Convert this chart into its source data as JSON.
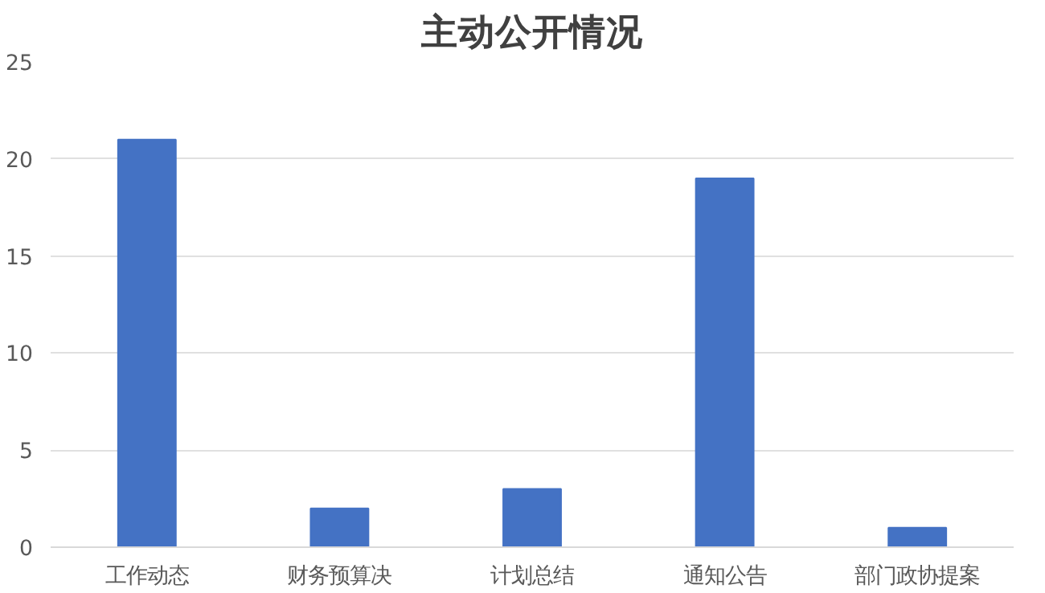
{
  "chart_data": {
    "type": "bar",
    "title": "主动公开情况",
    "categories": [
      "工作动态",
      "财务预算决",
      "计划总结",
      "通知公告",
      "部门政协提案"
    ],
    "values": [
      21,
      2,
      3,
      19,
      1
    ],
    "color": "#4472c4",
    "ylim": [
      0,
      25
    ],
    "yticks": [
      0,
      5,
      10,
      15,
      20,
      25
    ],
    "grid": "y"
  }
}
